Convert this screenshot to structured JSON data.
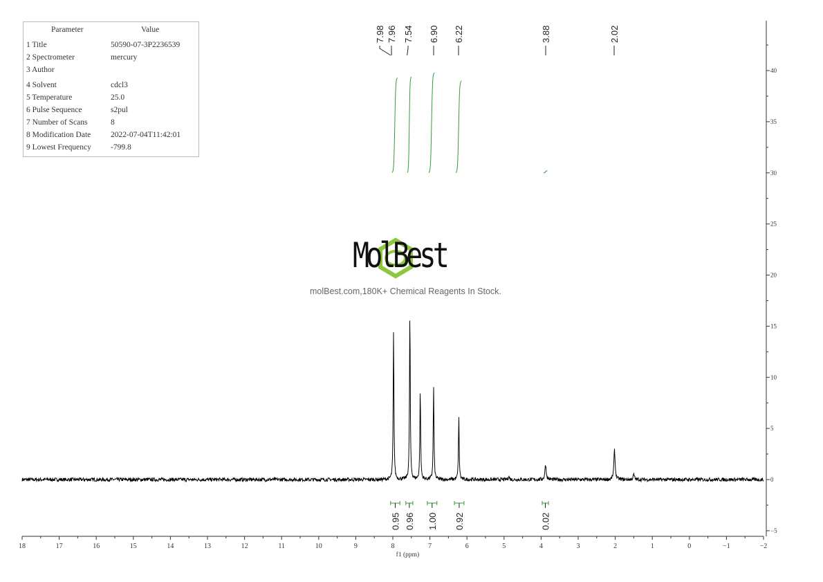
{
  "parameters": {
    "header": [
      "Parameter",
      "Value"
    ],
    "rows": [
      [
        "1 Title",
        "50590-07-3P2236539"
      ],
      [
        "2 Spectrometer",
        "mercury"
      ],
      [
        "3 Author",
        ""
      ],
      [
        "4 Solvent",
        "cdcl3"
      ],
      [
        "5 Temperature",
        "25.0"
      ],
      [
        "6 Pulse Sequence",
        "s2pul"
      ],
      [
        "7 Number of Scans",
        "8"
      ],
      [
        "8 Modification Date",
        "2022-07-04T11:42:01"
      ],
      [
        "9 Lowest Frequency",
        "-799.8"
      ]
    ]
  },
  "watermark": {
    "brand": "MolBest",
    "tagline": "molBest.com,180K+ Chemical Reagents In Stock.",
    "color": "#8dc63f"
  },
  "chart_data": {
    "type": "line",
    "xlabel": "f1 (ppm)",
    "xlim": [
      18,
      -2
    ],
    "ylim": [
      -5,
      45
    ],
    "x_ticks": [
      18,
      17,
      16,
      15,
      14,
      13,
      12,
      11,
      10,
      9,
      8,
      7,
      6,
      5,
      4,
      3,
      2,
      1,
      0,
      -1,
      -2
    ],
    "y_ticks": [
      -5,
      0,
      5,
      10,
      15,
      20,
      25,
      30,
      35,
      40
    ],
    "peaks": [
      {
        "ppm": 7.98,
        "height": 14.5
      },
      {
        "ppm": 7.54,
        "height": 16.4
      },
      {
        "ppm": 7.26,
        "height": 8.8
      },
      {
        "ppm": 6.9,
        "height": 9.1
      },
      {
        "ppm": 6.22,
        "height": 6.1
      },
      {
        "ppm": 4.87,
        "height": 0.3
      },
      {
        "ppm": 3.88,
        "height": 1.5
      },
      {
        "ppm": 2.02,
        "height": 2.9
      },
      {
        "ppm": 1.5,
        "height": 0.5
      }
    ],
    "peak_labels": [
      "7.98",
      "7.96",
      "7.54",
      "6.90",
      "6.22",
      "3.88",
      "2.02"
    ],
    "integrals": [
      {
        "from": 8.06,
        "to": 7.81,
        "value": "0.95"
      },
      {
        "from": 7.65,
        "to": 7.46,
        "value": "0.96"
      },
      {
        "from": 7.07,
        "to": 6.81,
        "value": "1.00"
      },
      {
        "from": 6.34,
        "to": 6.08,
        "value": "0.92"
      },
      {
        "from": 3.97,
        "to": 3.8,
        "value": "0.02"
      }
    ],
    "integral_color": "#3a9a3a",
    "spectrum_color": "#000000"
  }
}
